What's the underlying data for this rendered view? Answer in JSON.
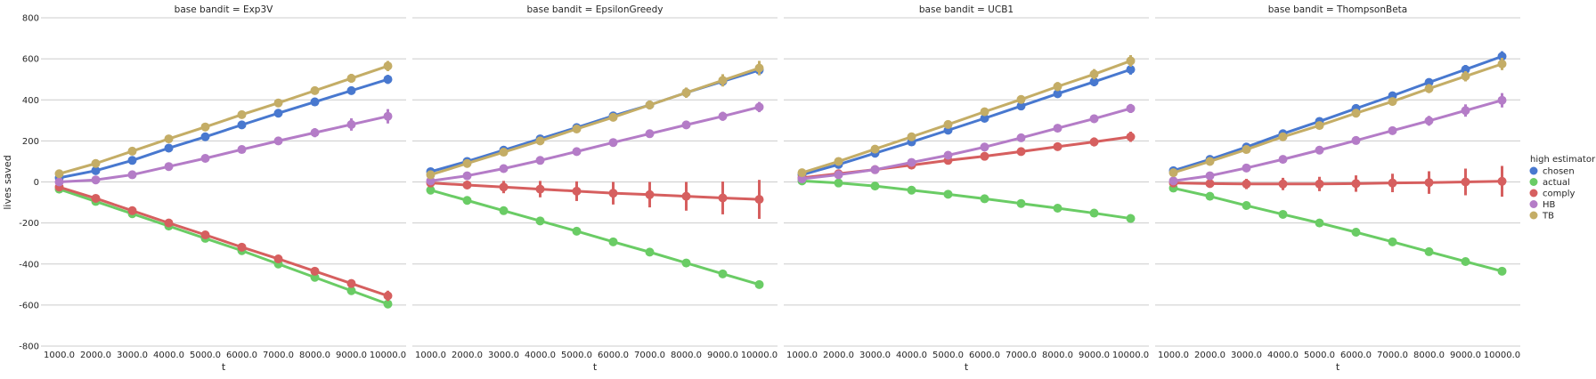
{
  "figure": {
    "ylabel": "lives saved",
    "xlabel": "t",
    "legend": {
      "title": "high estimator",
      "placement": "right"
    }
  },
  "chart_data": [
    {
      "type": "line",
      "title": "base bandit = Exp3V",
      "xlabel": "t",
      "ylabel": "lives saved",
      "ylim": [
        -800,
        800
      ],
      "yticks": [
        -800,
        -600,
        -400,
        -200,
        0,
        200,
        400,
        600,
        800
      ],
      "grid": "horizontal",
      "categories": [
        "1000.0",
        "2000.0",
        "3000.0",
        "4000.0",
        "5000.0",
        "6000.0",
        "7000.0",
        "8000.0",
        "9000.0",
        "10000.0"
      ],
      "series": [
        {
          "name": "chosen",
          "values": [
            20,
            55,
            105,
            165,
            220,
            278,
            335,
            390,
            445,
            500
          ],
          "err": [
            8,
            8,
            10,
            12,
            14,
            16,
            18,
            20,
            20,
            22
          ]
        },
        {
          "name": "actual",
          "values": [
            -35,
            -95,
            -155,
            -215,
            -275,
            -335,
            -400,
            -465,
            -530,
            -595
          ],
          "err": [
            4,
            5,
            6,
            6,
            7,
            8,
            8,
            8,
            9,
            10
          ]
        },
        {
          "name": "comply",
          "values": [
            -25,
            -80,
            -140,
            -200,
            -258,
            -318,
            -375,
            -435,
            -495,
            -555
          ],
          "err": [
            5,
            6,
            6,
            8,
            8,
            10,
            12,
            14,
            18,
            25
          ]
        },
        {
          "name": "HB",
          "values": [
            0,
            10,
            35,
            75,
            115,
            158,
            200,
            240,
            280,
            320
          ],
          "err": [
            5,
            6,
            8,
            10,
            12,
            14,
            18,
            22,
            30,
            35
          ]
        },
        {
          "name": "TB",
          "values": [
            40,
            90,
            150,
            210,
            268,
            328,
            385,
            445,
            505,
            565
          ],
          "err": [
            8,
            10,
            10,
            12,
            14,
            16,
            18,
            20,
            22,
            25
          ]
        }
      ]
    },
    {
      "type": "line",
      "title": "base bandit = EpsilonGreedy",
      "xlabel": "t",
      "ylim": [
        -800,
        800
      ],
      "categories": [
        "1000.0",
        "2000.0",
        "3000.0",
        "4000.0",
        "5000.0",
        "6000.0",
        "7000.0",
        "8000.0",
        "9000.0",
        "10000.0"
      ],
      "series": [
        {
          "name": "chosen",
          "values": [
            50,
            100,
            155,
            210,
            265,
            322,
            375,
            435,
            490,
            545
          ],
          "err": [
            6,
            8,
            10,
            12,
            14,
            16,
            18,
            20,
            22,
            25
          ]
        },
        {
          "name": "actual",
          "values": [
            -40,
            -90,
            -140,
            -190,
            -240,
            -292,
            -342,
            -395,
            -448,
            -500
          ],
          "err": [
            4,
            5,
            6,
            6,
            7,
            8,
            8,
            9,
            10,
            10
          ]
        },
        {
          "name": "comply",
          "values": [
            -5,
            -15,
            -25,
            -35,
            -45,
            -55,
            -62,
            -70,
            -78,
            -85
          ],
          "err": [
            10,
            20,
            30,
            40,
            48,
            55,
            62,
            70,
            80,
            95
          ]
        },
        {
          "name": "HB",
          "values": [
            5,
            30,
            65,
            105,
            148,
            192,
            235,
            278,
            320,
            365
          ],
          "err": [
            5,
            6,
            8,
            10,
            12,
            14,
            16,
            18,
            22,
            25
          ]
        },
        {
          "name": "TB",
          "values": [
            35,
            90,
            145,
            200,
            258,
            315,
            375,
            435,
            495,
            555
          ],
          "err": [
            8,
            10,
            12,
            14,
            16,
            18,
            22,
            25,
            30,
            35
          ]
        }
      ]
    },
    {
      "type": "line",
      "title": "base bandit = UCB1",
      "xlabel": "t",
      "ylim": [
        -800,
        800
      ],
      "categories": [
        "1000.0",
        "2000.0",
        "3000.0",
        "4000.0",
        "5000.0",
        "6000.0",
        "7000.0",
        "8000.0",
        "9000.0",
        "10000.0"
      ],
      "series": [
        {
          "name": "chosen",
          "values": [
            35,
            85,
            140,
            195,
            252,
            310,
            370,
            430,
            488,
            548
          ],
          "err": [
            6,
            8,
            10,
            12,
            14,
            16,
            18,
            20,
            22,
            25
          ]
        },
        {
          "name": "actual",
          "values": [
            5,
            -5,
            -20,
            -40,
            -60,
            -82,
            -105,
            -128,
            -152,
            -178
          ],
          "err": [
            4,
            5,
            6,
            6,
            7,
            8,
            8,
            9,
            10,
            10
          ]
        },
        {
          "name": "comply",
          "values": [
            20,
            40,
            60,
            82,
            105,
            125,
            148,
            172,
            195,
            220
          ],
          "err": [
            6,
            8,
            10,
            12,
            14,
            16,
            18,
            20,
            22,
            25
          ]
        },
        {
          "name": "HB",
          "values": [
            15,
            35,
            60,
            95,
            130,
            170,
            215,
            262,
            308,
            358
          ],
          "err": [
            5,
            6,
            8,
            10,
            12,
            14,
            16,
            18,
            20,
            22
          ]
        },
        {
          "name": "TB",
          "values": [
            45,
            100,
            160,
            220,
            280,
            342,
            402,
            465,
            525,
            590
          ],
          "err": [
            8,
            10,
            12,
            14,
            16,
            18,
            20,
            22,
            25,
            28
          ]
        }
      ]
    },
    {
      "type": "line",
      "title": "base bandit = ThompsonBeta",
      "xlabel": "t",
      "ylim": [
        -800,
        800
      ],
      "categories": [
        "1000.0",
        "2000.0",
        "3000.0",
        "4000.0",
        "5000.0",
        "6000.0",
        "7000.0",
        "8000.0",
        "9000.0",
        "10000.0"
      ],
      "series": [
        {
          "name": "chosen",
          "values": [
            55,
            110,
            170,
            235,
            295,
            358,
            420,
            485,
            548,
            612
          ],
          "err": [
            6,
            8,
            10,
            12,
            14,
            16,
            18,
            20,
            22,
            25
          ]
        },
        {
          "name": "actual",
          "values": [
            -30,
            -70,
            -115,
            -158,
            -200,
            -245,
            -292,
            -340,
            -388,
            -435
          ],
          "err": [
            4,
            5,
            6,
            6,
            7,
            8,
            8,
            9,
            10,
            12
          ]
        },
        {
          "name": "comply",
          "values": [
            -5,
            -8,
            -10,
            -10,
            -10,
            -8,
            -5,
            -3,
            0,
            3
          ],
          "err": [
            10,
            20,
            25,
            30,
            35,
            40,
            45,
            55,
            65,
            75
          ]
        },
        {
          "name": "HB",
          "values": [
            5,
            30,
            68,
            110,
            155,
            202,
            250,
            298,
            348,
            398
          ],
          "err": [
            5,
            6,
            8,
            10,
            12,
            16,
            20,
            24,
            30,
            35
          ]
        },
        {
          "name": "TB",
          "values": [
            45,
            100,
            158,
            220,
            275,
            335,
            392,
            455,
            515,
            575
          ],
          "err": [
            8,
            10,
            12,
            14,
            16,
            18,
            20,
            22,
            25,
            30
          ]
        }
      ]
    }
  ],
  "colors": {
    "chosen": "#4878cf",
    "actual": "#6acc65",
    "comply": "#d65f5f",
    "HB": "#b47cc7",
    "TB": "#c4ad66",
    "grid": "#cccccc",
    "text": "#262626",
    "background": "#ffffff"
  }
}
